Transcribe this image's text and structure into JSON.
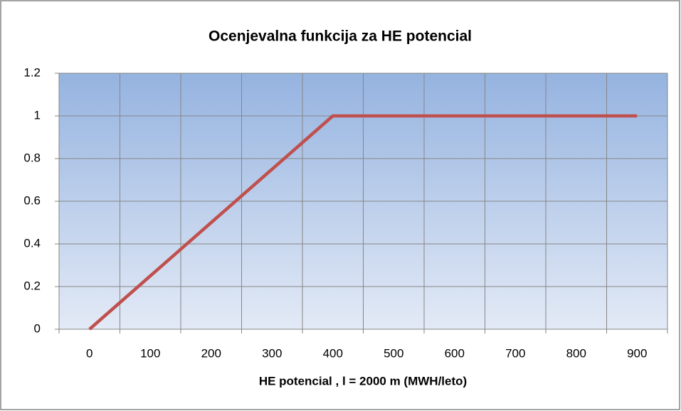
{
  "chart_data": {
    "type": "line",
    "title": "Ocenjevalna funkcija za HE potencial",
    "x_label": "HE potencial , l = 2000 m (MWH/leto)",
    "categories": [
      "0",
      "100",
      "200",
      "300",
      "400",
      "500",
      "600",
      "700",
      "800",
      "900"
    ],
    "series": [
      {
        "name": "Ocenjevalna funkcija",
        "color": "#c0504d",
        "values": [
          0,
          0.25,
          0.5,
          0.75,
          1,
          1,
          1,
          1,
          1,
          1
        ]
      }
    ],
    "ylim": [
      0,
      1.2
    ],
    "yticks": [
      0,
      0.2,
      0.4,
      0.6,
      0.8,
      1,
      1.2
    ],
    "grid": true
  }
}
